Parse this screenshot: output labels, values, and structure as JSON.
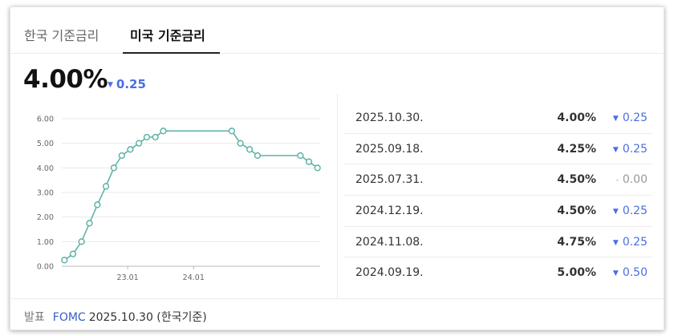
{
  "tabs": [
    {
      "label": "한국 기준금리",
      "active": false
    },
    {
      "label": "미국 기준금리",
      "active": true
    }
  ],
  "current": {
    "value": "4.00%",
    "change": "0.25",
    "direction": "down"
  },
  "chart_data": {
    "type": "line",
    "y_ticks": [
      "0.00",
      "1.00",
      "2.00",
      "3.00",
      "4.00",
      "5.00",
      "6.00"
    ],
    "ylim": [
      0,
      6
    ],
    "x_ticks": [
      {
        "label": "23.01",
        "x": 2023.0
      },
      {
        "label": "24.01",
        "x": 2024.0
      }
    ],
    "xlim": [
      2022.0,
      2025.92
    ],
    "points": [
      {
        "x": 2022.04,
        "y": 0.25
      },
      {
        "x": 2022.17,
        "y": 0.5
      },
      {
        "x": 2022.3,
        "y": 1.0
      },
      {
        "x": 2022.42,
        "y": 1.75
      },
      {
        "x": 2022.54,
        "y": 2.5
      },
      {
        "x": 2022.67,
        "y": 3.25
      },
      {
        "x": 2022.79,
        "y": 4.0
      },
      {
        "x": 2022.91,
        "y": 4.5
      },
      {
        "x": 2023.04,
        "y": 4.75
      },
      {
        "x": 2023.17,
        "y": 5.0
      },
      {
        "x": 2023.29,
        "y": 5.25
      },
      {
        "x": 2023.42,
        "y": 5.25
      },
      {
        "x": 2023.54,
        "y": 5.5
      },
      {
        "x": 2024.58,
        "y": 5.5
      },
      {
        "x": 2024.71,
        "y": 5.0
      },
      {
        "x": 2024.85,
        "y": 4.75
      },
      {
        "x": 2024.97,
        "y": 4.5
      },
      {
        "x": 2025.62,
        "y": 4.5
      },
      {
        "x": 2025.75,
        "y": 4.25
      },
      {
        "x": 2025.88,
        "y": 4.0
      }
    ],
    "line_color": "#5fb3a8",
    "grid": "horizontal"
  },
  "history": [
    {
      "date": "2025.10.30.",
      "rate": "4.00%",
      "change": "0.25",
      "direction": "down"
    },
    {
      "date": "2025.09.18.",
      "rate": "4.25%",
      "change": "0.25",
      "direction": "down"
    },
    {
      "date": "2025.07.31.",
      "rate": "4.50%",
      "change": "0.00",
      "direction": "flat"
    },
    {
      "date": "2024.12.19.",
      "rate": "4.50%",
      "change": "0.25",
      "direction": "down"
    },
    {
      "date": "2024.11.08.",
      "rate": "4.75%",
      "change": "0.25",
      "direction": "down"
    },
    {
      "date": "2024.09.19.",
      "rate": "5.00%",
      "change": "0.50",
      "direction": "down"
    }
  ],
  "footer": {
    "label": "발표",
    "source": "FOMC",
    "date_note": "2025.10.30 (한국기준)"
  },
  "colors": {
    "accent_down": "#4b6ee3",
    "flat": "#999999",
    "source_link": "#3a5bc7"
  }
}
